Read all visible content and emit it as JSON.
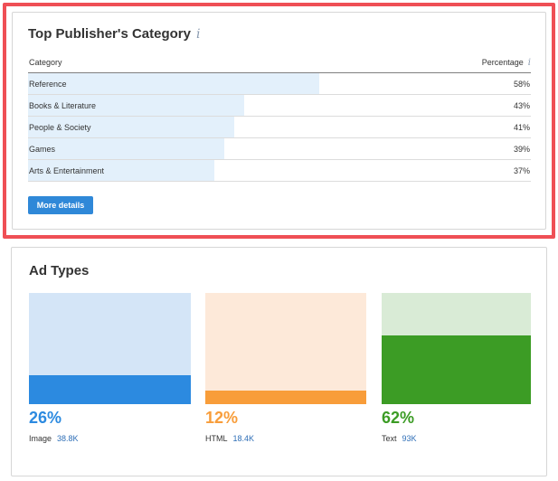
{
  "publisher_category": {
    "title": "Top Publisher's Category",
    "info_glyph": "i",
    "columns": {
      "category": "Category",
      "percentage": "Percentage"
    },
    "rows": [
      {
        "label": "Reference",
        "pct_text": "58%",
        "value": 58
      },
      {
        "label": "Books & Literature",
        "pct_text": "43%",
        "value": 43
      },
      {
        "label": "People & Society",
        "pct_text": "41%",
        "value": 41
      },
      {
        "label": "Games",
        "pct_text": "39%",
        "value": 39
      },
      {
        "label": "Arts & Entertainment",
        "pct_text": "37%",
        "value": 37
      }
    ],
    "more_button": "More details",
    "colors": {
      "bar_fill": "#e3f0fb",
      "button": "#2f88d8",
      "highlight": "#ef4f55"
    }
  },
  "ad_types": {
    "title": "Ad Types",
    "items": [
      {
        "pct_text": "26%",
        "value": 26,
        "label": "Image",
        "count": "38.8K",
        "light": "#d4e5f7",
        "dark": "#2c8ae0",
        "text_color": "#2c8ae0"
      },
      {
        "pct_text": "12%",
        "value": 12,
        "label": "HTML",
        "count": "18.4K",
        "light": "#fde9d9",
        "dark": "#f89d3a",
        "text_color": "#f89d3a"
      },
      {
        "pct_text": "62%",
        "value": 62,
        "label": "Text",
        "count": "93K",
        "light": "#d9ebd6",
        "dark": "#3c9c25",
        "text_color": "#3c9c25"
      }
    ]
  }
}
